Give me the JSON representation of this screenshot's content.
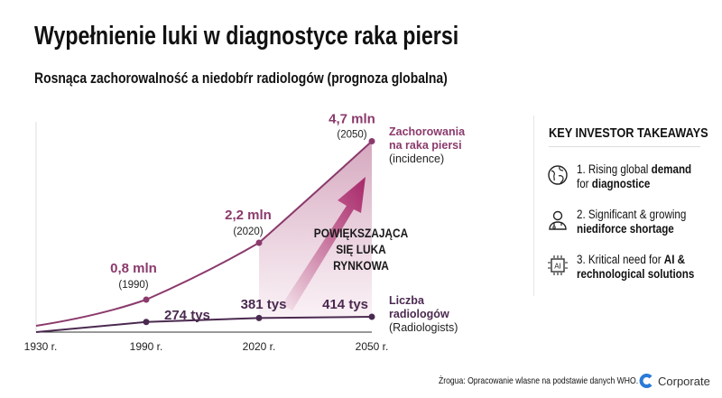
{
  "title": "Wypełnienie luki w diagnostyce raka piersi",
  "subtitle": "Rosnąca zachorowalność a niedobŕr radiologów (prognoza globalna)",
  "chart_data": {
    "type": "line",
    "categories": [
      "1930 r.",
      "1990 r.",
      "2020 r.",
      "2050 r."
    ],
    "series": [
      {
        "name": "Zachorowania na raka piersi (incidence)",
        "name_lines": [
          "Zachorowania",
          "na raka piersi",
          "(incidence)"
        ],
        "unit": "mln",
        "values": [
          null,
          0.8,
          2.2,
          4.7
        ],
        "labels": [
          null,
          "0,8 mln",
          "2,2 mln",
          "4,7 mln"
        ],
        "sublabels": [
          null,
          "(1990)",
          "(2020)",
          "(2050)"
        ],
        "color": "#8b3a6c"
      },
      {
        "name": "Liczba radiologów (Radiologists)",
        "name_lines": [
          "Liczba",
          "radiologów",
          "(Radiologists)"
        ],
        "unit": "tys",
        "values": [
          null,
          274,
          381,
          414
        ],
        "labels": [
          null,
          "274 tys",
          "381 tys",
          "414 tys"
        ],
        "color": "#4b2a50"
      }
    ],
    "annotation": [
      "POWIĘKSZAJĄCA",
      "SIĘ LUKA",
      "RYNKOWA"
    ],
    "accent_color": "#b0336f"
  },
  "panel": {
    "title": "KEY INVESTOR TAKEAWAYS",
    "items": [
      {
        "icon": "globe-icon",
        "line1_plain": "1. Rising global ",
        "line1_bold": "demand",
        "line2_plain": "for ",
        "line2_bold": "diagnostice"
      },
      {
        "icon": "doctor-icon",
        "line1_plain": "2. Significant & growing",
        "line1_bold": "",
        "line2_plain": "",
        "line2_bold": "niediforce shortage"
      },
      {
        "icon": "ai-chip-icon",
        "line1_plain": "3. Kritical need for ",
        "line1_bold": "AI &",
        "line2_plain": "",
        "line2_bold": "rechnological solutions"
      }
    ]
  },
  "footer": {
    "source": "Żrogua: Opracowanie wlasne na podstawie danych WHO.",
    "logo_text": "Corporate"
  }
}
